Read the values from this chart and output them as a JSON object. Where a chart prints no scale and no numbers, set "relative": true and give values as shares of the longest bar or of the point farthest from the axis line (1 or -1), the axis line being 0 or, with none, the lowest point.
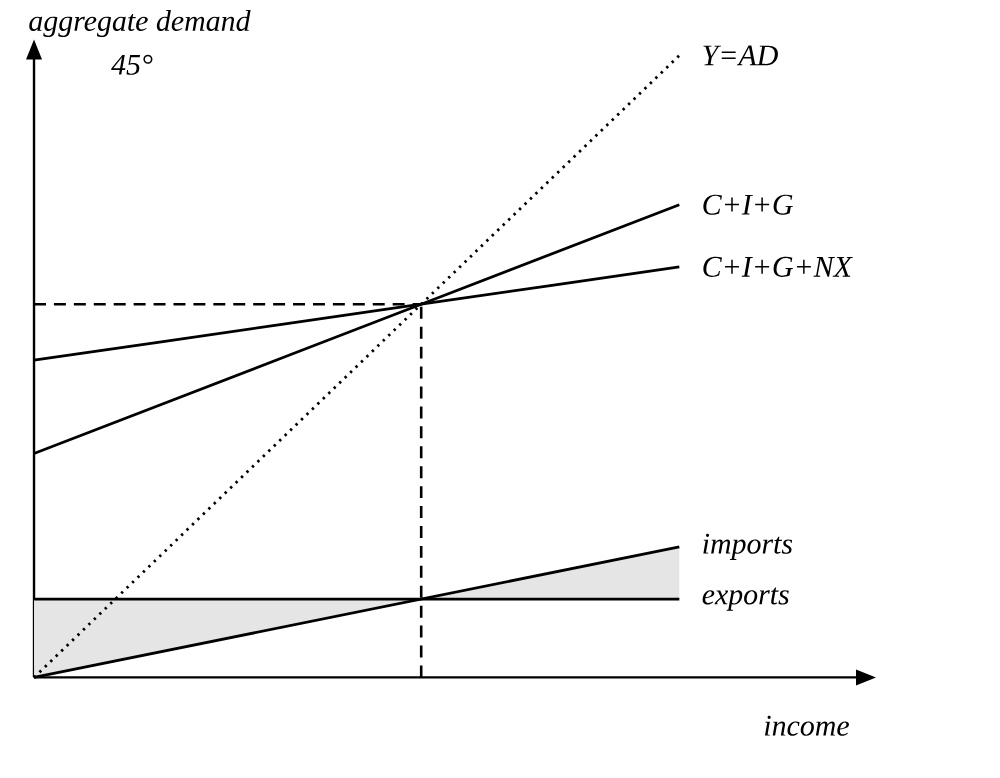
{
  "chart_data": {
    "type": "line",
    "relative": true,
    "xlabel": "income",
    "ylabel": "aggregate demand",
    "legend": false,
    "categories": [
      null,
      null,
      null,
      null,
      null,
      null
    ],
    "annotations": [
      "45°"
    ],
    "series": [
      {
        "name": "Y=AD",
        "color": "#000000",
        "line_style": "dotted",
        "values": [
          0,
          0.2,
          0.4,
          0.6,
          0.8,
          1.0
        ]
      },
      {
        "name": "C+I+G",
        "color": "#000000",
        "values": [
          0.36,
          0.44,
          0.52,
          0.6,
          0.68,
          0.76
        ]
      },
      {
        "name": "C+I+G+NX",
        "color": "#000000",
        "values": [
          0.51,
          0.54,
          0.57,
          0.6,
          0.63,
          0.66
        ]
      },
      {
        "name": "imports",
        "color": "#000000",
        "values": [
          0,
          0.042,
          0.084,
          0.126,
          0.168,
          0.21
        ],
        "lower": [
          0,
          0.042,
          0.084,
          0.126,
          0.126,
          0.126
        ],
        "upper": [
          0.126,
          0.126,
          0.126,
          0.126,
          0.168,
          0.21
        ]
      },
      {
        "name": "exports",
        "color": "#000000",
        "values": [
          0.126,
          0.126,
          0.126,
          0.126,
          0.126,
          0.126
        ]
      }
    ],
    "ref_lines": [
      {
        "axis": "y",
        "value": 0.6,
        "line_style": "dashed"
      }
    ]
  }
}
